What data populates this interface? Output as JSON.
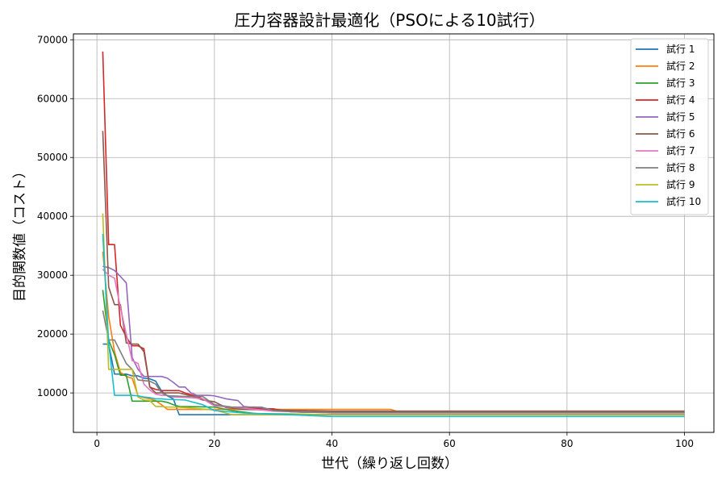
{
  "chart_data": {
    "type": "line",
    "title": "圧力容器設計最適化（PSOによる10試行）",
    "xlabel": "世代（繰り返し回数）",
    "ylabel": "目的関数値（コスト）",
    "xlim": [
      -4,
      105
    ],
    "ylim": [
      3300,
      71000
    ],
    "xticks": [
      0,
      20,
      40,
      60,
      80,
      100
    ],
    "yticks": [
      10000,
      20000,
      30000,
      40000,
      50000,
      60000,
      70000
    ],
    "grid": true,
    "legend_position": "top-right",
    "series": [
      {
        "name": "試行 1",
        "color": "#1f77b4",
        "points": [
          [
            1,
            18300
          ],
          [
            2,
            18300
          ],
          [
            3,
            13200
          ],
          [
            4,
            13200
          ],
          [
            5,
            13200
          ],
          [
            6,
            12900
          ],
          [
            7,
            12900
          ],
          [
            8,
            12500
          ],
          [
            9,
            12400
          ],
          [
            10,
            12000
          ],
          [
            11,
            10300
          ],
          [
            12,
            9500
          ],
          [
            13,
            9000
          ],
          [
            14,
            6300
          ],
          [
            20,
            6300
          ],
          [
            30,
            6300
          ],
          [
            100,
            6300
          ]
        ]
      },
      {
        "name": "試行 2",
        "color": "#ff7f0e",
        "points": [
          [
            1,
            34000
          ],
          [
            2,
            23000
          ],
          [
            3,
            17000
          ],
          [
            4,
            13500
          ],
          [
            5,
            12800
          ],
          [
            6,
            12500
          ],
          [
            7,
            9500
          ],
          [
            8,
            9200
          ],
          [
            9,
            9000
          ],
          [
            10,
            8700
          ],
          [
            11,
            8000
          ],
          [
            12,
            7200
          ],
          [
            13,
            7200
          ],
          [
            20,
            7200
          ],
          [
            30,
            7200
          ],
          [
            50,
            7200
          ],
          [
            51,
            6900
          ],
          [
            100,
            6900
          ]
        ]
      },
      {
        "name": "試行 3",
        "color": "#2ca02c",
        "points": [
          [
            1,
            27500
          ],
          [
            2,
            19000
          ],
          [
            3,
            16500
          ],
          [
            4,
            13000
          ],
          [
            5,
            13000
          ],
          [
            6,
            8600
          ],
          [
            7,
            8600
          ],
          [
            8,
            8600
          ],
          [
            9,
            8600
          ],
          [
            10,
            8600
          ],
          [
            11,
            8600
          ],
          [
            12,
            8400
          ],
          [
            13,
            8000
          ],
          [
            14,
            7700
          ],
          [
            20,
            7600
          ],
          [
            23,
            7000
          ],
          [
            27,
            6500
          ],
          [
            40,
            6300
          ],
          [
            100,
            6300
          ]
        ]
      },
      {
        "name": "試行 4",
        "color": "#d62728",
        "points": [
          [
            1,
            68000
          ],
          [
            2,
            35200
          ],
          [
            3,
            35200
          ],
          [
            4,
            21500
          ],
          [
            5,
            19500
          ],
          [
            6,
            18000
          ],
          [
            7,
            18000
          ],
          [
            8,
            17500
          ],
          [
            9,
            11000
          ],
          [
            10,
            10600
          ],
          [
            11,
            10400
          ],
          [
            12,
            10400
          ],
          [
            13,
            10400
          ],
          [
            14,
            10400
          ],
          [
            15,
            10000
          ],
          [
            17,
            9400
          ],
          [
            18,
            9000
          ],
          [
            19,
            8500
          ],
          [
            20,
            8000
          ],
          [
            22,
            7600
          ],
          [
            25,
            7400
          ],
          [
            30,
            7300
          ],
          [
            33,
            6800
          ],
          [
            40,
            6700
          ],
          [
            100,
            6700
          ]
        ]
      },
      {
        "name": "試行 5",
        "color": "#9467bd",
        "points": [
          [
            1,
            31500
          ],
          [
            2,
            31300
          ],
          [
            3,
            30800
          ],
          [
            4,
            29800
          ],
          [
            5,
            28700
          ],
          [
            6,
            16000
          ],
          [
            7,
            14000
          ],
          [
            8,
            12800
          ],
          [
            9,
            12800
          ],
          [
            10,
            12800
          ],
          [
            11,
            12800
          ],
          [
            12,
            12500
          ],
          [
            13,
            11800
          ],
          [
            14,
            11000
          ],
          [
            15,
            11000
          ],
          [
            16,
            10000
          ],
          [
            17,
            9600
          ],
          [
            18,
            9600
          ],
          [
            19,
            9600
          ],
          [
            20,
            9500
          ],
          [
            22,
            9000
          ],
          [
            24,
            8700
          ],
          [
            25,
            7700
          ],
          [
            26,
            7600
          ],
          [
            27,
            7600
          ],
          [
            28,
            7500
          ],
          [
            30,
            7000
          ],
          [
            40,
            6600
          ],
          [
            100,
            6600
          ]
        ]
      },
      {
        "name": "試行 6",
        "color": "#8c564b",
        "points": [
          [
            1,
            54500
          ],
          [
            2,
            28000
          ],
          [
            3,
            25000
          ],
          [
            4,
            25000
          ],
          [
            5,
            18500
          ],
          [
            6,
            18300
          ],
          [
            7,
            18300
          ],
          [
            8,
            17000
          ],
          [
            9,
            11000
          ],
          [
            10,
            10000
          ],
          [
            11,
            10000
          ],
          [
            12,
            10000
          ],
          [
            13,
            10000
          ],
          [
            14,
            10000
          ],
          [
            16,
            9500
          ],
          [
            18,
            8800
          ],
          [
            20,
            8500
          ],
          [
            22,
            7500
          ],
          [
            25,
            7200
          ],
          [
            30,
            7100
          ],
          [
            40,
            6900
          ],
          [
            100,
            6900
          ]
        ]
      },
      {
        "name": "試行 7",
        "color": "#e377c2",
        "points": [
          [
            1,
            31000
          ],
          [
            2,
            30000
          ],
          [
            3,
            29500
          ],
          [
            4,
            24500
          ],
          [
            5,
            20000
          ],
          [
            6,
            15500
          ],
          [
            7,
            15000
          ],
          [
            8,
            11500
          ],
          [
            9,
            10500
          ],
          [
            10,
            9800
          ],
          [
            11,
            9600
          ],
          [
            12,
            9600
          ],
          [
            13,
            9300
          ],
          [
            16,
            9200
          ],
          [
            18,
            9000
          ],
          [
            20,
            7800
          ],
          [
            25,
            7400
          ],
          [
            30,
            6900
          ],
          [
            40,
            6600
          ],
          [
            100,
            6600
          ]
        ]
      },
      {
        "name": "試行 8",
        "color": "#7f7f7f",
        "points": [
          [
            1,
            24000
          ],
          [
            2,
            19000
          ],
          [
            3,
            19000
          ],
          [
            4,
            17000
          ],
          [
            5,
            15000
          ],
          [
            6,
            14000
          ],
          [
            7,
            12200
          ],
          [
            8,
            12100
          ],
          [
            9,
            12000
          ],
          [
            10,
            11500
          ],
          [
            11,
            10000
          ],
          [
            12,
            9500
          ],
          [
            13,
            9500
          ],
          [
            15,
            9400
          ],
          [
            18,
            9400
          ],
          [
            20,
            8000
          ],
          [
            23,
            7600
          ],
          [
            26,
            7600
          ],
          [
            28,
            7600
          ],
          [
            30,
            7000
          ],
          [
            35,
            6700
          ],
          [
            100,
            6700
          ]
        ]
      },
      {
        "name": "試行 9",
        "color": "#bcbd22",
        "points": [
          [
            1,
            40500
          ],
          [
            2,
            14000
          ],
          [
            3,
            14000
          ],
          [
            4,
            14000
          ],
          [
            5,
            14000
          ],
          [
            6,
            14000
          ],
          [
            7,
            9300
          ],
          [
            8,
            8800
          ],
          [
            9,
            8700
          ],
          [
            10,
            7700
          ],
          [
            11,
            7700
          ],
          [
            12,
            7600
          ],
          [
            13,
            7600
          ],
          [
            15,
            7500
          ],
          [
            20,
            7100
          ],
          [
            23,
            6300
          ],
          [
            100,
            6300
          ]
        ]
      },
      {
        "name": "試行 10",
        "color": "#17becf",
        "points": [
          [
            1,
            37000
          ],
          [
            2,
            18500
          ],
          [
            3,
            9600
          ],
          [
            4,
            9600
          ],
          [
            5,
            9600
          ],
          [
            6,
            9600
          ],
          [
            7,
            9500
          ],
          [
            8,
            9300
          ],
          [
            9,
            9200
          ],
          [
            10,
            9000
          ],
          [
            11,
            9000
          ],
          [
            12,
            8900
          ],
          [
            15,
            8800
          ],
          [
            18,
            8000
          ],
          [
            20,
            7000
          ],
          [
            25,
            6600
          ],
          [
            40,
            6000
          ],
          [
            100,
            6000
          ]
        ]
      }
    ]
  }
}
